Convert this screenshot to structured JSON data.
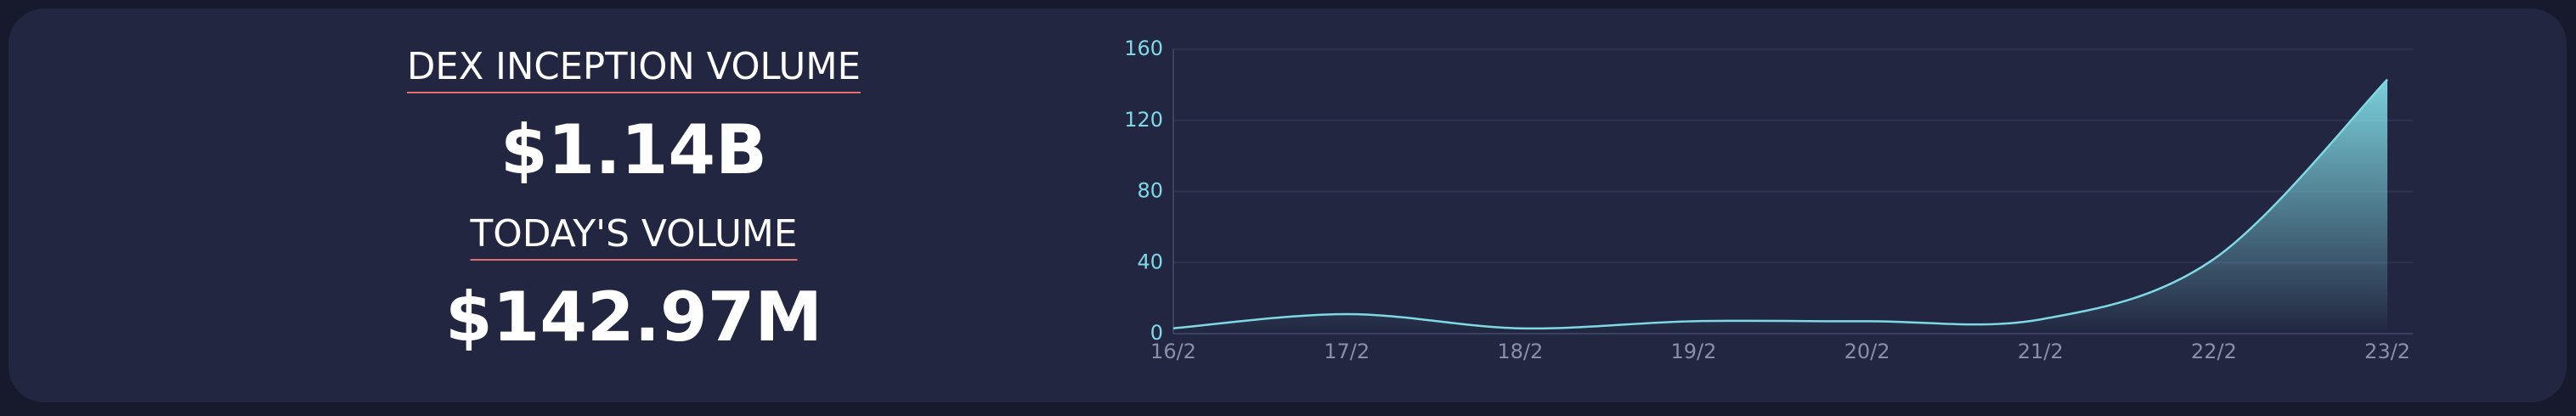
{
  "stats": [
    {
      "label": "DEX INCEPTION VOLUME",
      "value": "$1.14B"
    },
    {
      "label": "TODAY'S VOLUME",
      "value": "$142.97M"
    }
  ],
  "chart_data": {
    "type": "area",
    "categories": [
      "16/2",
      "17/2",
      "18/2",
      "19/2",
      "20/2",
      "21/2",
      "22/2",
      "23/2"
    ],
    "series": [
      {
        "color": "#7fd9e3",
        "values": [
          3,
          11,
          3,
          7,
          7,
          8,
          42,
          143
        ]
      }
    ],
    "ylim": [
      0,
      160
    ],
    "yticks": [
      0,
      40,
      80,
      120,
      160
    ],
    "grid": true
  }
}
